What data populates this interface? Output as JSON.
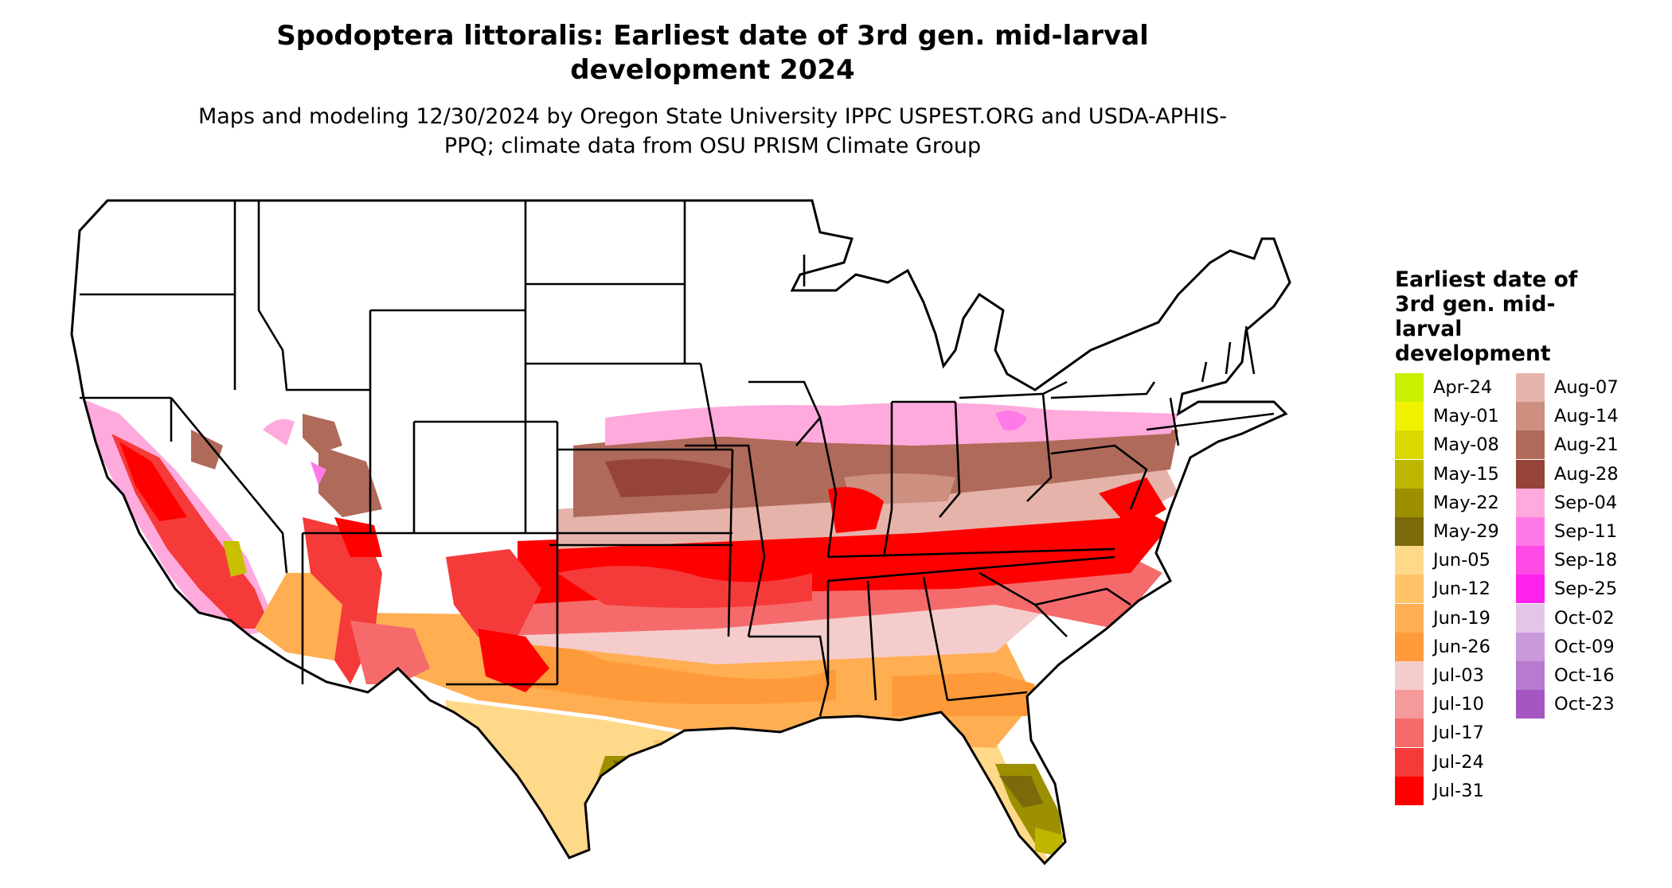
{
  "title": "Spodoptera littoralis: Earliest date of 3rd gen. mid-larval development 2024",
  "subtitle": "Maps and modeling 12/30/2024 by Oregon State University IPPC USPEST.ORG and USDA-APHIS-PPQ; climate data from OSU PRISM Climate Group",
  "legend": {
    "title": "Earliest date of 3rd gen. mid-larval development",
    "items": [
      {
        "label": "Apr-24",
        "color": "#c8f000"
      },
      {
        "label": "May-01",
        "color": "#f2f200"
      },
      {
        "label": "May-08",
        "color": "#d9d900"
      },
      {
        "label": "May-15",
        "color": "#bdb500"
      },
      {
        "label": "May-22",
        "color": "#9c9000"
      },
      {
        "label": "May-29",
        "color": "#7a6a0a"
      },
      {
        "label": "Jun-05",
        "color": "#ffd98a"
      },
      {
        "label": "Jun-12",
        "color": "#ffc36a"
      },
      {
        "label": "Jun-19",
        "color": "#ffae52"
      },
      {
        "label": "Jun-26",
        "color": "#ff9a3a"
      },
      {
        "label": "Jul-03",
        "color": "#f5cccc"
      },
      {
        "label": "Jul-10",
        "color": "#f59a9a"
      },
      {
        "label": "Jul-17",
        "color": "#f56b6b"
      },
      {
        "label": "Jul-24",
        "color": "#f53a3a"
      },
      {
        "label": "Jul-31",
        "color": "#ff0000"
      },
      {
        "label": "Aug-07",
        "color": "#e6b3ab"
      },
      {
        "label": "Aug-14",
        "color": "#cc8f80"
      },
      {
        "label": "Aug-21",
        "color": "#b06a5a"
      },
      {
        "label": "Aug-28",
        "color": "#964438"
      },
      {
        "label": "Sep-04",
        "color": "#ffaadd"
      },
      {
        "label": "Sep-11",
        "color": "#ff7ae6"
      },
      {
        "label": "Sep-18",
        "color": "#ff4ae6"
      },
      {
        "label": "Sep-25",
        "color": "#ff22ee"
      },
      {
        "label": "Oct-02",
        "color": "#e3c6e6"
      },
      {
        "label": "Oct-09",
        "color": "#c999d9"
      },
      {
        "label": "Oct-16",
        "color": "#b77acf"
      },
      {
        "label": "Oct-23",
        "color": "#a455c2"
      }
    ]
  }
}
